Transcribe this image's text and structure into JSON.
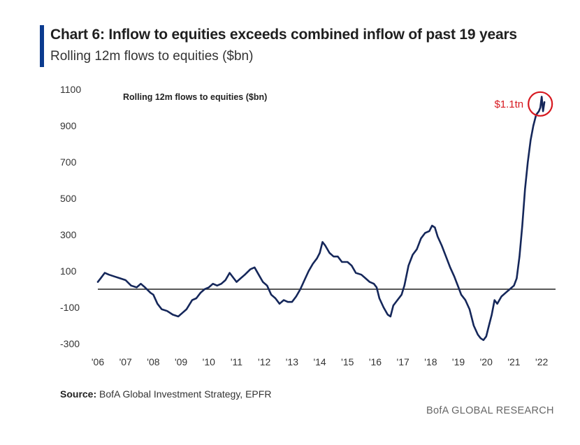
{
  "header": {
    "title": "Chart 6: Inflow to equities exceeds combined inflow of past 19 years",
    "subtitle": "Rolling 12m flows to equities ($bn)"
  },
  "footer": {
    "source_label": "Source:",
    "source_text": "BofA Global Investment Strategy, EPFR",
    "brand": "BofA GLOBAL RESEARCH"
  },
  "colors": {
    "line": "#15275a",
    "accent_bar": "#0b3b8f",
    "annotation": "#d71920"
  },
  "chart_data": {
    "type": "line",
    "title": "Rolling 12m flows to equities ($bn)",
    "xlabel": "",
    "ylabel": "",
    "ylim": [
      -300,
      1100
    ],
    "xlim": [
      2006.0,
      2022.5
    ],
    "yticks": [
      "1100",
      "900",
      "700",
      "500",
      "300",
      "100",
      "-100",
      "-300"
    ],
    "ytick_values": [
      1100,
      900,
      700,
      500,
      300,
      100,
      -100,
      -300
    ],
    "xticks": [
      "'06",
      "'07",
      "'08",
      "'09",
      "'10",
      "'11",
      "'12",
      "'13",
      "'14",
      "'15",
      "'16",
      "'17",
      "'18",
      "'19",
      "'20",
      "'21",
      "'22"
    ],
    "xtick_values": [
      2006,
      2007,
      2008,
      2009,
      2010,
      2011,
      2012,
      2013,
      2014,
      2015,
      2016,
      2017,
      2018,
      2019,
      2020,
      2021,
      2022
    ],
    "zero_line": 0,
    "annotation": {
      "text": "$1.1tn",
      "x": 2021.95,
      "y": 1020
    },
    "series": [
      {
        "x": [
          2006.0,
          2006.1,
          2006.25,
          2006.4,
          2006.6,
          2006.8,
          2007.0,
          2007.2,
          2007.4,
          2007.55,
          2007.7,
          2007.9,
          2008.0,
          2008.15,
          2008.3,
          2008.5,
          2008.7,
          2008.9,
          2009.05,
          2009.2,
          2009.4,
          2009.55,
          2009.7,
          2009.85,
          2010.0,
          2010.15,
          2010.3,
          2010.45,
          2010.6,
          2010.75,
          2010.9,
          2011.0,
          2011.15,
          2011.3,
          2011.5,
          2011.65,
          2011.8,
          2011.95,
          2012.1,
          2012.25,
          2012.4,
          2012.55,
          2012.7,
          2012.85,
          2013.0,
          2013.15,
          2013.3,
          2013.45,
          2013.6,
          2013.75,
          2013.9,
          2014.0,
          2014.1,
          2014.2,
          2014.35,
          2014.5,
          2014.65,
          2014.8,
          2015.0,
          2015.15,
          2015.3,
          2015.5,
          2015.65,
          2015.8,
          2015.95,
          2016.05,
          2016.15,
          2016.3,
          2016.45,
          2016.55,
          2016.65,
          2016.8,
          2016.95,
          2017.05,
          2017.2,
          2017.35,
          2017.5,
          2017.65,
          2017.8,
          2017.95,
          2018.05,
          2018.15,
          2018.25,
          2018.4,
          2018.55,
          2018.7,
          2018.85,
          2019.0,
          2019.1,
          2019.25,
          2019.4,
          2019.55,
          2019.7,
          2019.8,
          2019.9,
          2020.0,
          2020.1,
          2020.2,
          2020.3,
          2020.4,
          2020.55,
          2020.7,
          2020.85,
          2021.0,
          2021.1,
          2021.2,
          2021.3,
          2021.4,
          2021.5,
          2021.6,
          2021.7,
          2021.8,
          2021.9,
          2021.95,
          2022.0,
          2022.05,
          2022.1
        ],
        "values": [
          40,
          60,
          90,
          80,
          70,
          60,
          50,
          20,
          10,
          30,
          10,
          -20,
          -30,
          -80,
          -110,
          -120,
          -140,
          -150,
          -130,
          -110,
          -60,
          -50,
          -20,
          0,
          10,
          30,
          20,
          30,
          50,
          90,
          60,
          40,
          60,
          80,
          110,
          120,
          80,
          40,
          20,
          -30,
          -50,
          -80,
          -60,
          -70,
          -70,
          -40,
          0,
          50,
          100,
          140,
          170,
          200,
          260,
          240,
          200,
          180,
          180,
          150,
          150,
          130,
          90,
          80,
          60,
          40,
          30,
          10,
          -50,
          -100,
          -140,
          -150,
          -90,
          -60,
          -30,
          20,
          130,
          190,
          220,
          280,
          310,
          320,
          350,
          340,
          290,
          240,
          180,
          120,
          70,
          10,
          -30,
          -60,
          -110,
          -200,
          -250,
          -270,
          -280,
          -260,
          -200,
          -140,
          -60,
          -80,
          -40,
          -20,
          0,
          20,
          60,
          180,
          350,
          550,
          700,
          820,
          900,
          960,
          980,
          1000,
          1060,
          980,
          1030
        ]
      }
    ]
  }
}
